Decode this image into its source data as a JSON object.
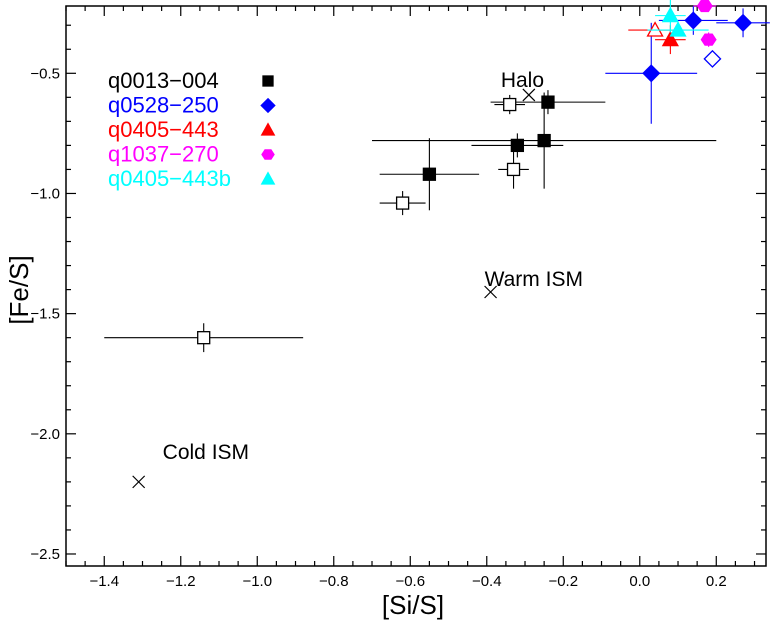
{
  "chart_data": {
    "type": "scatter",
    "xlabel": "[Si/S]",
    "ylabel": "[Fe/S]",
    "xlim": [
      -1.5,
      0.33
    ],
    "ylim": [
      -2.55,
      -0.22
    ],
    "x_ticks": [
      -1.4,
      -1.2,
      -1.0,
      -0.8,
      -0.6,
      -0.4,
      -0.2,
      0.0,
      0.2
    ],
    "x_tick_labels": [
      "−1.4",
      "−1.2",
      "−1.0",
      "−0.8",
      "−0.6",
      "−0.4",
      "−0.2",
      "0.0",
      "0.2"
    ],
    "y_ticks": [
      -2.5,
      -2.0,
      -1.5,
      -1.0,
      -0.5
    ],
    "y_tick_labels": [
      "−2.5",
      "−2.0",
      "−1.5",
      "−1.0",
      "−0.5"
    ],
    "grid": false,
    "legend_position": "upper-left",
    "series": [
      {
        "name": "q0013−004",
        "color": "#000000",
        "marker": "square",
        "points": [
          {
            "x": -0.55,
            "y": -0.92,
            "xerr": 0.13,
            "yerr": 0.15,
            "filled": true
          },
          {
            "x": -0.32,
            "y": -0.8,
            "xerr": 0.12,
            "yerr": 0.05,
            "filled": true
          },
          {
            "x": -0.25,
            "y": -0.78,
            "xerr": 0.45,
            "yerr": 0.2,
            "filled": true
          },
          {
            "x": -0.24,
            "y": -0.62,
            "xerr": 0.15,
            "yerr": 0.05,
            "filled": true
          },
          {
            "x": -1.14,
            "y": -1.6,
            "xerr": 0.26,
            "yerr": 0.06,
            "filled": false
          },
          {
            "x": -0.62,
            "y": -1.04,
            "xerr": 0.06,
            "yerr": 0.05,
            "filled": false
          },
          {
            "x": -0.33,
            "y": -0.9,
            "xerr": 0.04,
            "yerr": 0.08,
            "filled": false
          },
          {
            "x": -0.34,
            "y": -0.63,
            "xerr": 0.04,
            "yerr": 0.04,
            "filled": false
          }
        ]
      },
      {
        "name": "q0528−250",
        "color": "#0000ff",
        "marker": "diamond",
        "points": [
          {
            "x": 0.03,
            "y": -0.5,
            "xerr": 0.12,
            "yerr": 0.21,
            "filled": true
          },
          {
            "x": 0.14,
            "y": -0.28,
            "xerr": 0.09,
            "yerr": 0.06,
            "filled": true
          },
          {
            "x": 0.27,
            "y": -0.29,
            "xerr": 0.07,
            "yerr": 0.06,
            "filled": true
          },
          {
            "x": 0.19,
            "y": -0.44,
            "xerr": 0.0,
            "yerr": 0.0,
            "filled": false
          }
        ]
      },
      {
        "name": "q0405−443",
        "color": "#ff0000",
        "marker": "triangle",
        "points": [
          {
            "x": 0.08,
            "y": -0.36,
            "xerr": 0.04,
            "yerr": 0.06,
            "filled": true
          },
          {
            "x": 0.04,
            "y": -0.32,
            "xerr": 0.07,
            "yerr": 0.0,
            "filled": false
          }
        ]
      },
      {
        "name": "q1037−270",
        "color": "#ff00ff",
        "marker": "hexagon",
        "points": [
          {
            "x": 0.17,
            "y": -0.22,
            "xerr": 0.03,
            "yerr": 0.0,
            "filled": true
          },
          {
            "x": 0.18,
            "y": -0.36,
            "xerr": 0.02,
            "yerr": 0.03,
            "filled": true
          }
        ]
      },
      {
        "name": "q0405−443b",
        "color": "#00ffff",
        "marker": "triangle",
        "points": [
          {
            "x": 0.08,
            "y": -0.26,
            "xerr": 0.04,
            "yerr": 0.07,
            "filled": true
          },
          {
            "x": 0.1,
            "y": -0.32,
            "xerr": 0.08,
            "yerr": 0.02,
            "filled": true
          }
        ]
      }
    ],
    "reference_points": [
      {
        "label": "Halo",
        "x": -0.29,
        "y": -0.59
      },
      {
        "label": "Warm ISM",
        "x": -0.39,
        "y": -1.41
      },
      {
        "label": "Cold ISM",
        "x": -1.31,
        "y": -2.2
      }
    ]
  }
}
